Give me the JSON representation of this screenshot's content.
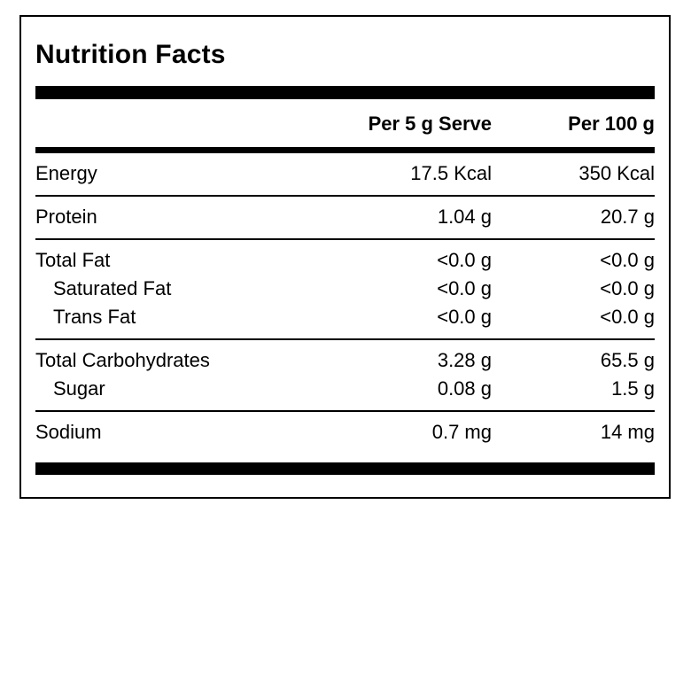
{
  "label": {
    "title": "Nutrition Facts",
    "colors": {
      "ink": "#000000",
      "background": "#ffffff"
    },
    "header": {
      "col_serve": "Per 5 g Serve",
      "col_100g": "Per 100 g"
    },
    "sections": [
      {
        "rows": [
          {
            "name": "Energy",
            "indent": false,
            "per_serve": "17.5 Kcal",
            "per_100g": "350 Kcal"
          }
        ]
      },
      {
        "rows": [
          {
            "name": "Protein",
            "indent": false,
            "per_serve": "1.04 g",
            "per_100g": "20.7 g"
          }
        ]
      },
      {
        "rows": [
          {
            "name": "Total Fat",
            "indent": false,
            "per_serve": "<0.0 g",
            "per_100g": "<0.0 g"
          },
          {
            "name": "Saturated Fat",
            "indent": true,
            "per_serve": "<0.0 g",
            "per_100g": "<0.0 g"
          },
          {
            "name": "Trans Fat",
            "indent": true,
            "per_serve": "<0.0 g",
            "per_100g": "<0.0 g"
          }
        ]
      },
      {
        "rows": [
          {
            "name": "Total Carbohydrates",
            "indent": false,
            "per_serve": "3.28 g",
            "per_100g": "65.5 g"
          },
          {
            "name": "Sugar",
            "indent": true,
            "per_serve": "0.08 g",
            "per_100g": "1.5 g"
          }
        ]
      },
      {
        "rows": [
          {
            "name": "Sodium",
            "indent": false,
            "per_serve": "0.7 mg",
            "per_100g": "14 mg"
          }
        ]
      }
    ]
  }
}
